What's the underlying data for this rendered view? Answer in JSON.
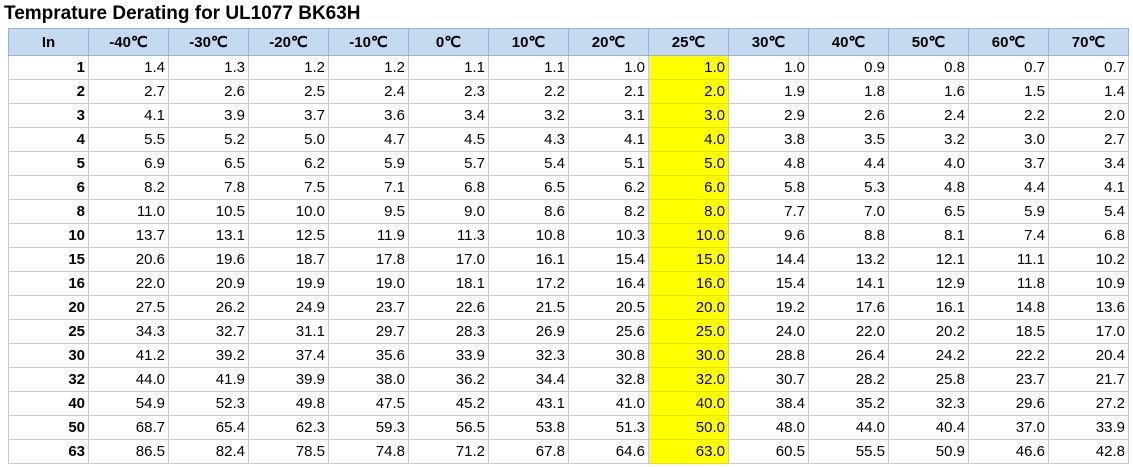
{
  "title": "Temprature Derating for UL1077 BK63H",
  "table": {
    "header": [
      "In",
      "-40℃",
      "-30℃",
      "-20℃",
      "-10℃",
      "0℃",
      "10℃",
      "20℃",
      "25℃",
      "30℃",
      "40℃",
      "50℃",
      "60℃",
      "70℃"
    ],
    "rows": [
      [
        "1",
        "1.4",
        "1.3",
        "1.2",
        "1.2",
        "1.1",
        "1.1",
        "1.0",
        "1.0",
        "1.0",
        "0.9",
        "0.8",
        "0.7",
        "0.7"
      ],
      [
        "2",
        "2.7",
        "2.6",
        "2.5",
        "2.4",
        "2.3",
        "2.2",
        "2.1",
        "2.0",
        "1.9",
        "1.8",
        "1.6",
        "1.5",
        "1.4"
      ],
      [
        "3",
        "4.1",
        "3.9",
        "3.7",
        "3.6",
        "3.4",
        "3.2",
        "3.1",
        "3.0",
        "2.9",
        "2.6",
        "2.4",
        "2.2",
        "2.0"
      ],
      [
        "4",
        "5.5",
        "5.2",
        "5.0",
        "4.7",
        "4.5",
        "4.3",
        "4.1",
        "4.0",
        "3.8",
        "3.5",
        "3.2",
        "3.0",
        "2.7"
      ],
      [
        "5",
        "6.9",
        "6.5",
        "6.2",
        "5.9",
        "5.7",
        "5.4",
        "5.1",
        "5.0",
        "4.8",
        "4.4",
        "4.0",
        "3.7",
        "3.4"
      ],
      [
        "6",
        "8.2",
        "7.8",
        "7.5",
        "7.1",
        "6.8",
        "6.5",
        "6.2",
        "6.0",
        "5.8",
        "5.3",
        "4.8",
        "4.4",
        "4.1"
      ],
      [
        "8",
        "11.0",
        "10.5",
        "10.0",
        "9.5",
        "9.0",
        "8.6",
        "8.2",
        "8.0",
        "7.7",
        "7.0",
        "6.5",
        "5.9",
        "5.4"
      ],
      [
        "10",
        "13.7",
        "13.1",
        "12.5",
        "11.9",
        "11.3",
        "10.8",
        "10.3",
        "10.0",
        "9.6",
        "8.8",
        "8.1",
        "7.4",
        "6.8"
      ],
      [
        "15",
        "20.6",
        "19.6",
        "18.7",
        "17.8",
        "17.0",
        "16.1",
        "15.4",
        "15.0",
        "14.4",
        "13.2",
        "12.1",
        "11.1",
        "10.2"
      ],
      [
        "16",
        "22.0",
        "20.9",
        "19.9",
        "19.0",
        "18.1",
        "17.2",
        "16.4",
        "16.0",
        "15.4",
        "14.1",
        "12.9",
        "11.8",
        "10.9"
      ],
      [
        "20",
        "27.5",
        "26.2",
        "24.9",
        "23.7",
        "22.6",
        "21.5",
        "20.5",
        "20.0",
        "19.2",
        "17.6",
        "16.1",
        "14.8",
        "13.6"
      ],
      [
        "25",
        "34.3",
        "32.7",
        "31.1",
        "29.7",
        "28.3",
        "26.9",
        "25.6",
        "25.0",
        "24.0",
        "22.0",
        "20.2",
        "18.5",
        "17.0"
      ],
      [
        "30",
        "41.2",
        "39.2",
        "37.4",
        "35.6",
        "33.9",
        "32.3",
        "30.8",
        "30.0",
        "28.8",
        "26.4",
        "24.2",
        "22.2",
        "20.4"
      ],
      [
        "32",
        "44.0",
        "41.9",
        "39.9",
        "38.0",
        "36.2",
        "34.4",
        "32.8",
        "32.0",
        "30.7",
        "28.2",
        "25.8",
        "23.7",
        "21.7"
      ],
      [
        "40",
        "54.9",
        "52.3",
        "49.8",
        "47.5",
        "45.2",
        "43.1",
        "41.0",
        "40.0",
        "38.4",
        "35.2",
        "32.3",
        "29.6",
        "27.2"
      ],
      [
        "50",
        "68.7",
        "65.4",
        "62.3",
        "59.3",
        "56.5",
        "53.8",
        "51.3",
        "50.0",
        "48.0",
        "44.0",
        "40.4",
        "37.0",
        "33.9"
      ],
      [
        "63",
        "86.5",
        "82.4",
        "78.5",
        "74.8",
        "71.2",
        "67.8",
        "64.6",
        "63.0",
        "60.5",
        "55.5",
        "50.9",
        "46.6",
        "42.8"
      ]
    ]
  }
}
